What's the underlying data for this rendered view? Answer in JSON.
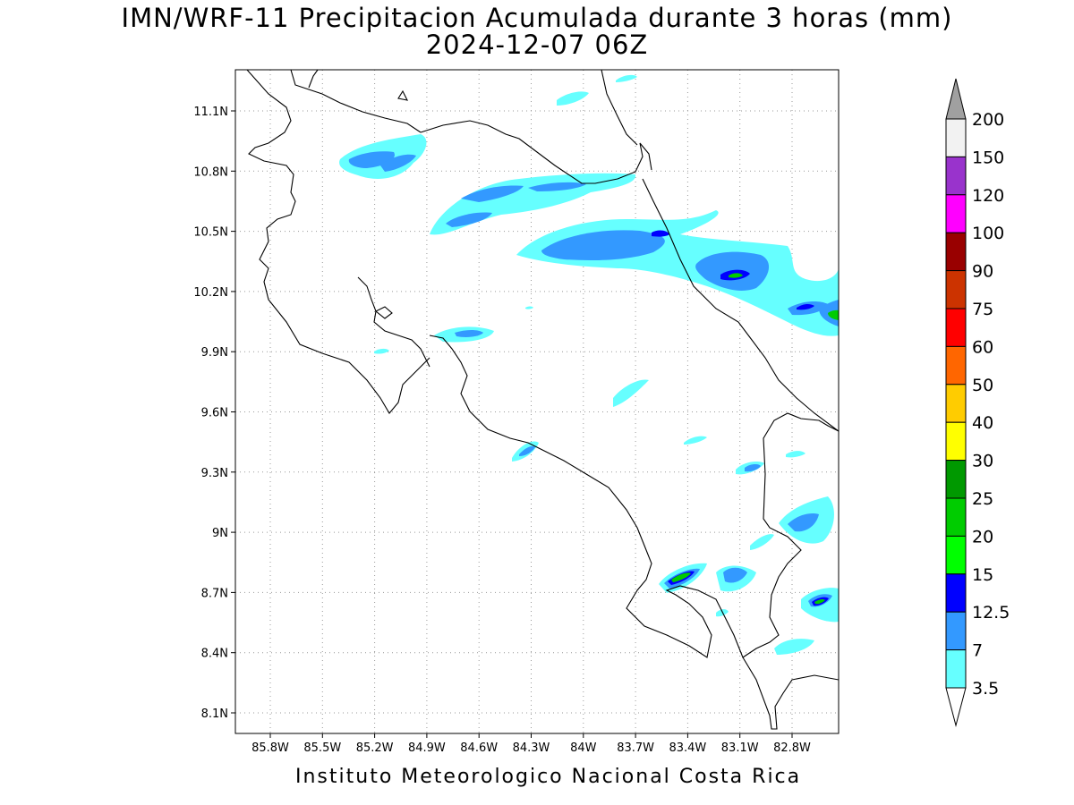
{
  "title": {
    "line1": "IMN/WRF-11 Precipitacion Acumulada durante 3 horas (mm)",
    "line2": "2024-12-07 06Z"
  },
  "footer": "Instituto Meteorologico Nacional Costa Rica",
  "axes": {
    "lat_ticks": [
      "11.1N",
      "10.8N",
      "10.5N",
      "10.2N",
      "9.9N",
      "9.6N",
      "9.3N",
      "9N",
      "8.7N",
      "8.4N",
      "8.1N"
    ],
    "lon_ticks": [
      "85.8W",
      "85.5W",
      "85.2W",
      "84.9W",
      "84.6W",
      "84.3W",
      "84W",
      "83.7W",
      "83.4W",
      "83.1W",
      "82.8W"
    ],
    "grid": "dotted"
  },
  "colorbar": {
    "labels": [
      "200",
      "150",
      "120",
      "100",
      "90",
      "75",
      "60",
      "50",
      "40",
      "30",
      "25",
      "20",
      "15",
      "12.5",
      "7",
      "3.5"
    ],
    "colors_top_to_bottom": [
      "#f2f2f2",
      "#9933cc",
      "#ff00ff",
      "#990000",
      "#cc3300",
      "#ff0000",
      "#ff6600",
      "#ffcc00",
      "#ffff00",
      "#009900",
      "#00cc00",
      "#00ff00",
      "#0000ff",
      "#3399ff",
      "#66ffff"
    ],
    "over_color": "#a0a0a0",
    "under_color": "#ffffff"
  },
  "precip_colors": {
    "light": "#66ffff",
    "moderate": "#3399ff",
    "heavy": "#0000ff",
    "intense": "#00cc00"
  }
}
